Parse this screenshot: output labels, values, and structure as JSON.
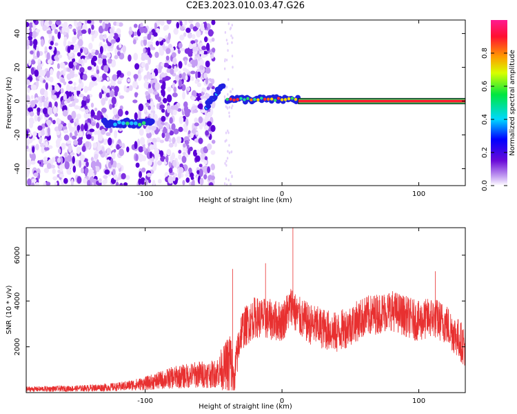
{
  "title": "C2E3.2023.010.03.47.G26",
  "chart_data": [
    {
      "type": "heatmap",
      "xlabel": "Height of straight line (km)",
      "ylabel": "Frequency (Hz)",
      "xlim": [
        -187,
        134
      ],
      "ylim": [
        -50,
        48
      ],
      "xticks": [
        -100,
        0,
        100
      ],
      "yticks": [
        -40,
        -20,
        0,
        20,
        40
      ],
      "colorbar": {
        "label": "Normalized spectral amplitude",
        "range": [
          0,
          1
        ],
        "ticks": [
          "0.0",
          "0.2",
          "0.4",
          "0.6",
          "0.8"
        ]
      },
      "noise_region_km": [
        -187,
        -50
      ],
      "clean_gap_km": [
        -50,
        -40
      ],
      "track": {
        "segment_1": {
          "x": [
            -130,
            -95
          ],
          "freq_hz": -13
        },
        "segment_2": {
          "x": [
            -55,
            -43
          ],
          "freq_hz_start": -3,
          "freq_hz_end": 10
        },
        "segment_3": {
          "x": [
            -40,
            12
          ],
          "freq_hz": 1
        },
        "segment_4": {
          "x": [
            12,
            134
          ],
          "freq_hz": 0,
          "normalized_amplitude": 0.95
        }
      }
    },
    {
      "type": "line",
      "xlabel": "Height of straight line (km)",
      "ylabel": "SNR (10 * v/v)",
      "xlim": [
        -187,
        134
      ],
      "ylim": [
        0,
        7200
      ],
      "xticks": [
        -100,
        0,
        100
      ],
      "yticks": [
        2000,
        4000,
        6000
      ],
      "series": [
        {
          "color": "#e83030",
          "x": [
            -187,
            -150,
            -120,
            -100,
            -80,
            -60,
            -50,
            -42,
            -38,
            -35,
            -30,
            -20,
            -10,
            0,
            8,
            10,
            20,
            40,
            60,
            80,
            100,
            110,
            120,
            134
          ],
          "y": [
            150,
            180,
            250,
            400,
            650,
            800,
            800,
            1100,
            1500,
            700,
            2700,
            3300,
            3200,
            3100,
            3900,
            3400,
            3000,
            2600,
            3300,
            3600,
            3100,
            3300,
            3000,
            2000
          ]
        }
      ],
      "spikes": [
        {
          "x": -36,
          "y": 5400
        },
        {
          "x": -12,
          "y": 5650
        },
        {
          "x": 8,
          "y": 7200
        },
        {
          "x": 112,
          "y": 5300
        }
      ]
    }
  ]
}
